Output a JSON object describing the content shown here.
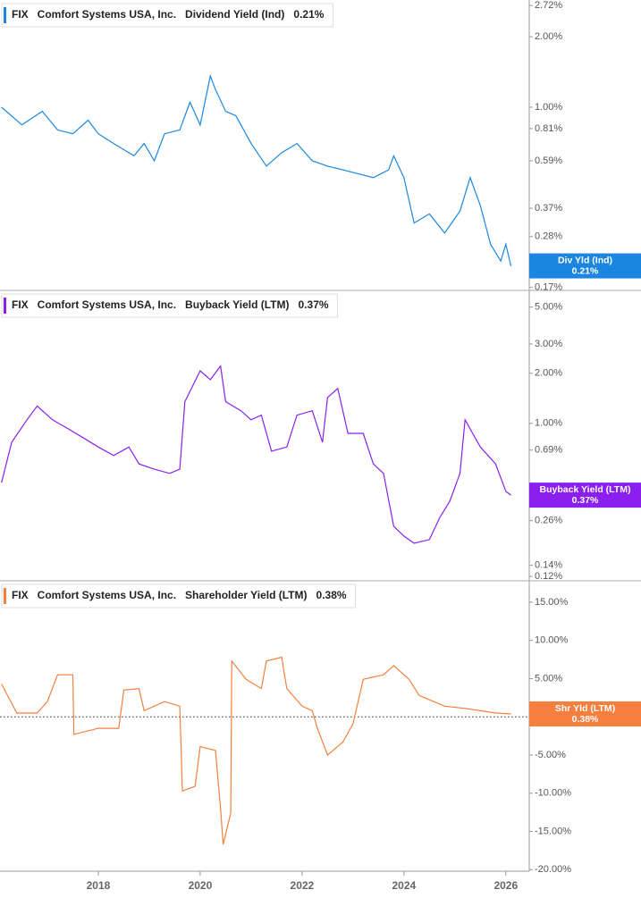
{
  "chart_data": [
    {
      "type": "line",
      "ticker": "FIX",
      "company": "Comfort Systems USA, Inc.",
      "metric": "Dividend Yield (Ind)",
      "value_label": "0.21%",
      "badge_label": "Div Yld (Ind)",
      "log_scale": true,
      "ylim": [
        0.165,
        2.87
      ],
      "xlim": [
        2016.07,
        2026.46
      ],
      "yticks": [
        {
          "value": 2.72,
          "label": "2.72%"
        },
        {
          "value": 2.0,
          "label": "2.00%"
        },
        {
          "value": 1.0,
          "label": "1.00%"
        },
        {
          "value": 0.81,
          "label": "0.81%"
        },
        {
          "value": 0.59,
          "label": "0.59%"
        },
        {
          "value": 0.37,
          "label": "0.37%"
        },
        {
          "value": 0.28,
          "label": "0.28%"
        },
        {
          "value": 0.17,
          "label": "0.17%"
        }
      ],
      "x": [
        2016.1,
        2016.5,
        2016.9,
        2017.2,
        2017.5,
        2017.8,
        2018.0,
        2018.3,
        2018.7,
        2018.9,
        2019.1,
        2019.3,
        2019.6,
        2019.8,
        2020.0,
        2020.2,
        2020.3,
        2020.5,
        2020.7,
        2021.0,
        2021.3,
        2021.6,
        2021.9,
        2022.2,
        2022.5,
        2022.8,
        2023.1,
        2023.4,
        2023.7,
        2023.8,
        2024.0,
        2024.2,
        2024.5,
        2024.8,
        2025.1,
        2025.3,
        2025.5,
        2025.7,
        2025.9,
        2026.0,
        2026.1
      ],
      "series": [
        {
          "name": "Dividend Yield (Ind)",
          "color": "#1a86e0",
          "values": [
            1.0,
            0.84,
            0.96,
            0.8,
            0.77,
            0.88,
            0.77,
            0.7,
            0.62,
            0.7,
            0.59,
            0.77,
            0.8,
            1.05,
            0.84,
            1.36,
            1.19,
            0.96,
            0.92,
            0.7,
            0.56,
            0.64,
            0.7,
            0.59,
            0.56,
            0.54,
            0.52,
            0.5,
            0.54,
            0.62,
            0.5,
            0.32,
            0.35,
            0.29,
            0.36,
            0.5,
            0.38,
            0.26,
            0.22,
            0.26,
            0.21
          ]
        }
      ]
    },
    {
      "type": "line",
      "ticker": "FIX",
      "company": "Comfort Systems USA, Inc.",
      "metric": "Buyback Yield (LTM)",
      "value_label": "0.37%",
      "badge_label": "Buyback Yield (LTM)",
      "log_scale": true,
      "ylim": [
        0.113,
        6.3
      ],
      "xlim": [
        2016.07,
        2026.46
      ],
      "yticks": [
        {
          "value": 5.0,
          "label": "5.00%"
        },
        {
          "value": 3.0,
          "label": "3.00%"
        },
        {
          "value": 2.0,
          "label": "2.00%"
        },
        {
          "value": 1.0,
          "label": "1.00%"
        },
        {
          "value": 0.69,
          "label": "0.69%"
        },
        {
          "value": 0.26,
          "label": "0.26%"
        },
        {
          "value": 0.14,
          "label": "0.14%"
        },
        {
          "value": 0.12,
          "label": "0.12%"
        }
      ],
      "x": [
        2016.1,
        2016.3,
        2016.6,
        2016.8,
        2017.1,
        2017.4,
        2017.7,
        2018.0,
        2018.3,
        2018.6,
        2018.8,
        2019.1,
        2019.4,
        2019.6,
        2019.7,
        2020.0,
        2020.2,
        2020.4,
        2020.5,
        2020.8,
        2021.0,
        2021.2,
        2021.4,
        2021.7,
        2021.9,
        2022.2,
        2022.4,
        2022.5,
        2022.7,
        2022.9,
        2023.2,
        2023.4,
        2023.6,
        2023.8,
        2024.0,
        2024.2,
        2024.5,
        2024.7,
        2024.9,
        2025.1,
        2025.2,
        2025.5,
        2025.8,
        2026.0,
        2026.1
      ],
      "series": [
        {
          "name": "Buyback Yield (LTM)",
          "color": "#8a1ff0",
          "values": [
            0.44,
            0.77,
            1.05,
            1.27,
            1.05,
            0.93,
            0.82,
            0.72,
            0.64,
            0.72,
            0.57,
            0.53,
            0.5,
            0.53,
            1.35,
            2.07,
            1.83,
            2.21,
            1.35,
            1.19,
            1.05,
            1.12,
            0.68,
            0.72,
            1.12,
            1.19,
            0.77,
            1.43,
            1.62,
            0.87,
            0.87,
            0.57,
            0.5,
            0.24,
            0.21,
            0.19,
            0.2,
            0.27,
            0.34,
            0.5,
            1.05,
            0.72,
            0.57,
            0.39,
            0.37
          ]
        }
      ]
    },
    {
      "type": "line",
      "ticker": "FIX",
      "company": "Comfort Systems USA, Inc.",
      "metric": "Shareholder Yield (LTM)",
      "value_label": "0.38%",
      "badge_label": "Shr Yld (LTM)",
      "log_scale": false,
      "zero_line": true,
      "ylim": [
        -20.2,
        17.8
      ],
      "xlim": [
        2016.07,
        2026.46
      ],
      "yticks": [
        {
          "value": 15,
          "label": "15.00%"
        },
        {
          "value": 10,
          "label": "10.00%"
        },
        {
          "value": 5,
          "label": "5.00%"
        },
        {
          "value": 0,
          "label": "0.00%"
        },
        {
          "value": -5,
          "label": "-5.00%"
        },
        {
          "value": -10,
          "label": "-10.00%"
        },
        {
          "value": -15,
          "label": "-15.00%"
        },
        {
          "value": -20,
          "label": "-20.00%"
        }
      ],
      "xticks": [
        2018,
        2020,
        2022,
        2024,
        2026
      ],
      "x": [
        2016.1,
        2016.4,
        2016.8,
        2017.0,
        2017.2,
        2017.5,
        2017.52,
        2018.0,
        2018.4,
        2018.5,
        2018.8,
        2018.9,
        2019.3,
        2019.6,
        2019.65,
        2019.9,
        2020.0,
        2020.3,
        2020.4,
        2020.45,
        2020.6,
        2020.62,
        2020.9,
        2021.2,
        2021.3,
        2021.6,
        2021.7,
        2022.0,
        2022.2,
        2022.3,
        2022.5,
        2022.8,
        2023.0,
        2023.2,
        2023.6,
        2023.8,
        2024.1,
        2024.3,
        2024.8,
        2025.2,
        2025.5,
        2025.8,
        2026.1
      ],
      "series": [
        {
          "name": "Shareholder Yield (LTM)",
          "color": "#f47f3e",
          "values": [
            4.3,
            0.5,
            0.5,
            2.0,
            5.5,
            5.5,
            -2.3,
            -1.5,
            -1.5,
            3.5,
            3.7,
            0.8,
            2.0,
            1.4,
            -9.7,
            -9.1,
            -3.9,
            -4.4,
            -12.0,
            -16.7,
            -12.6,
            7.3,
            4.9,
            3.7,
            7.3,
            7.8,
            3.7,
            1.4,
            0.8,
            -1.5,
            -5.0,
            -3.3,
            -0.9,
            4.9,
            5.5,
            6.7,
            4.9,
            2.8,
            1.4,
            1.1,
            0.8,
            0.5,
            0.38
          ]
        }
      ]
    }
  ]
}
